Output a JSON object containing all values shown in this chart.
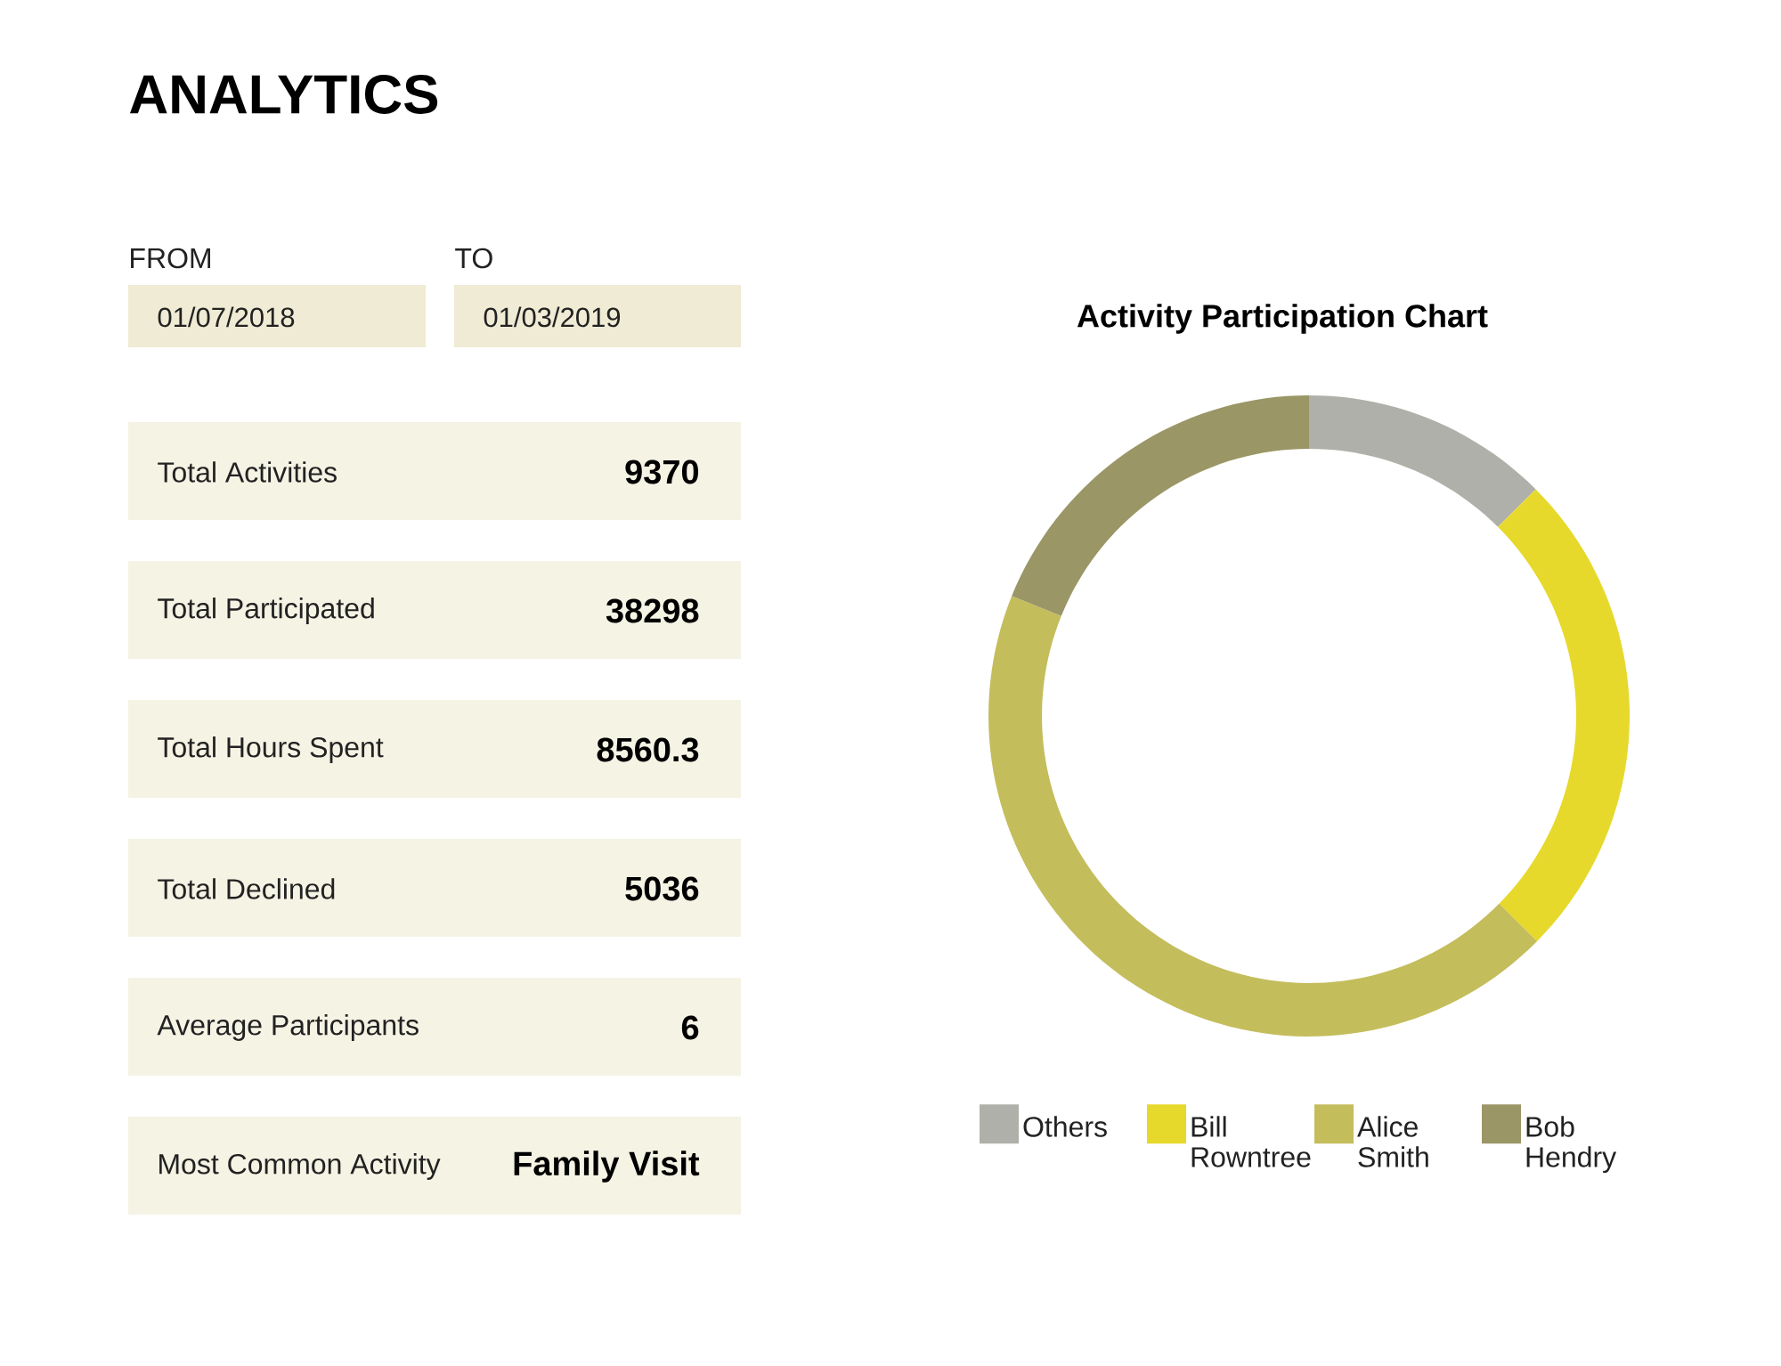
{
  "chart_data": [
    {
      "type": "other",
      "title": "ANALYTICS",
      "annotations": [
        "FROM",
        "01/07/2018",
        "TO",
        "01/03/2019",
        "Total Activities",
        "9370",
        "Total Participated",
        "38298",
        "Total Hours Spent",
        "8560.3",
        "Total Declined",
        "5036",
        "Average Participants",
        "6",
        "Most Common Activity",
        "Family Visit"
      ]
    },
    {
      "type": "donut",
      "title": "Activity Participation Chart",
      "categories": [
        "Others",
        "Bill Rowntree",
        "Alice Smith",
        "Bob Hendry"
      ],
      "values": [
        12.5,
        24.9,
        43.7,
        18.9
      ],
      "colors": [
        "#b0b0aa",
        "#e6d92b",
        "#c4bd5c",
        "#9a9666"
      ],
      "legend": "bottom"
    }
  ]
}
